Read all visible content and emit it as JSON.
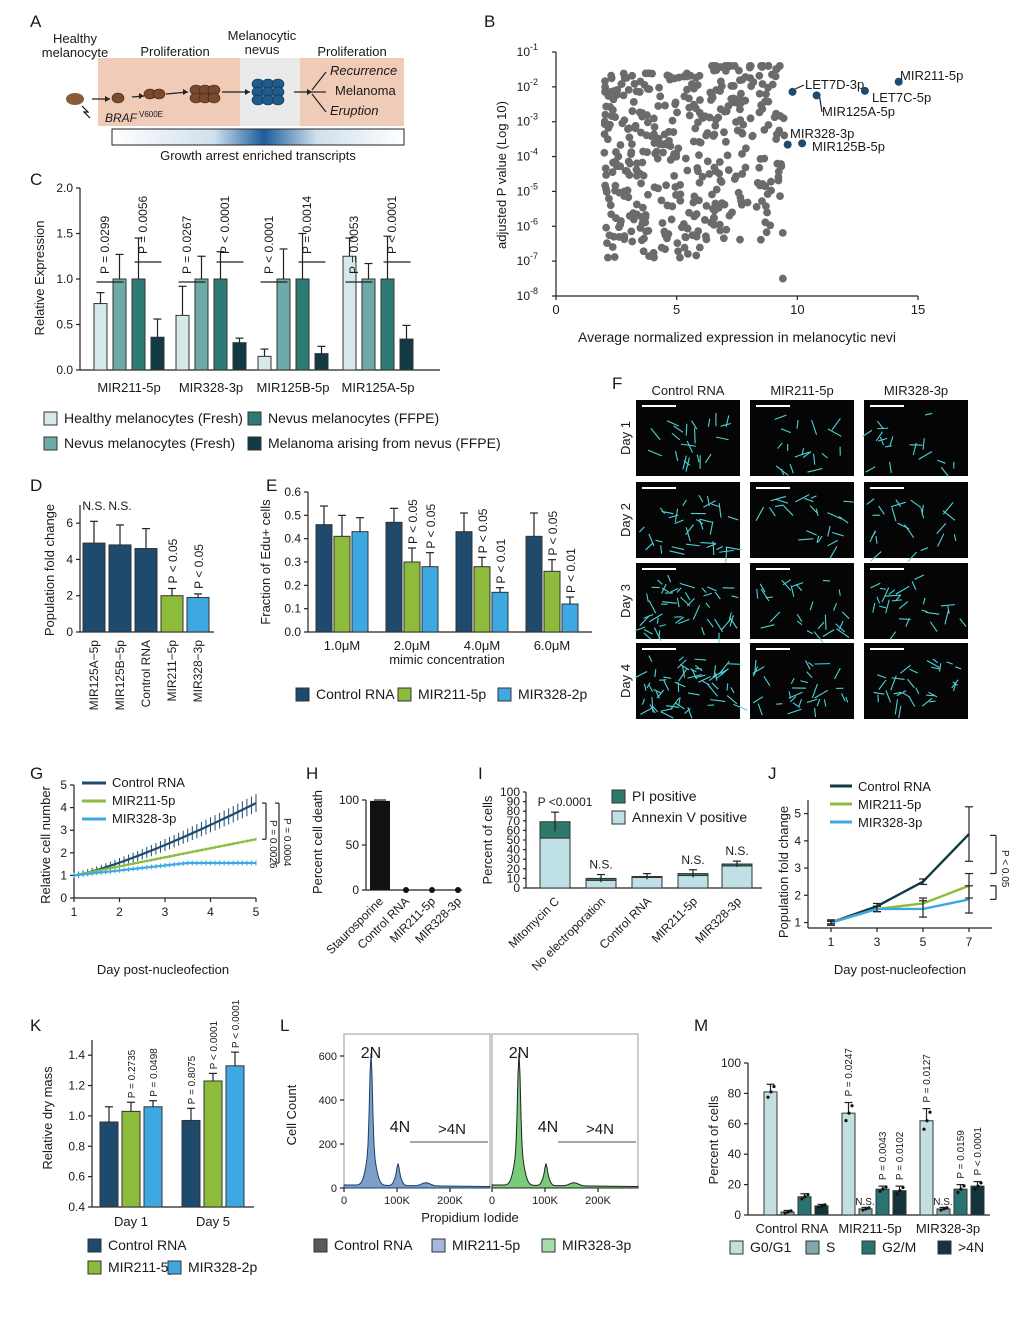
{
  "colors": {
    "navy": "#1e4a6e",
    "teal": "#2e7b76",
    "lightTeal": "#6fa9a8",
    "pale": "#d6e8ea",
    "green": "#8dbb3c",
    "sky": "#3ea8e2",
    "grey": "#666666",
    "dark": "#123a44",
    "black": "#111111",
    "blueHist": "#4f7fb5",
    "greenHist": "#3aa843"
  },
  "panel_labels": [
    "A",
    "B",
    "C",
    "D",
    "E",
    "F",
    "G",
    "H",
    "I",
    "J",
    "K",
    "L",
    "M"
  ],
  "panelA": {
    "healthy": "Healthy\nmelanocyte",
    "braf": "BRAF",
    "braf_sup": "V600E",
    "prolif1": "Proliferation",
    "nevus": "Melanocytic\nnevus",
    "prolif2": "Proliferation",
    "outcomes": [
      "Recurrence",
      "Melanoma",
      "Eruption"
    ],
    "gradient_label": "Growth arrest enriched transcripts"
  },
  "chart_data": [
    {
      "panel": "B",
      "type": "scatter",
      "xlabel": "Average normalized expression in melanocytic nevi",
      "ylabel": "adjusted P value (Log 10)",
      "xlim": [
        0,
        15
      ],
      "ylim_log10": [
        -8,
        -1
      ],
      "x_ticks": [
        "0",
        "5",
        "10",
        "15"
      ],
      "y_ticks": [
        "10^-1",
        "10^-2",
        "10^-3",
        "10^-4",
        "10^-5",
        "10^-6",
        "10^-7",
        "10^-8"
      ],
      "highlighted": [
        {
          "label": "MIR211-5p",
          "x": 14.2,
          "y": 0.014
        },
        {
          "label": "LET7D-3p",
          "x": 9.8,
          "y": 0.0072
        },
        {
          "label": "LET7C-5p",
          "x": 12.8,
          "y": 0.0077
        },
        {
          "label": "MIR125A-5p",
          "x": 10.8,
          "y": 0.0057
        },
        {
          "label": "MIR328-3p",
          "x": 9.6,
          "y": 0.00022
        },
        {
          "label": "MIR125B-5p",
          "x": 10.2,
          "y": 0.00024
        }
      ]
    },
    {
      "panel": "C",
      "type": "bar",
      "ylabel": "Relative Expression",
      "ylim": [
        0,
        2
      ],
      "y_ticks": [
        "0.0",
        "0.5",
        "1.0",
        "1.5",
        "2.0"
      ],
      "categories": [
        "MIR211-5p",
        "MIR328-3p",
        "MIR125B-5p",
        "MIR125A-5p"
      ],
      "series": [
        {
          "name": "Healthy melanocytes (Fresh)",
          "values": [
            0.73,
            0.6,
            0.15,
            1.25
          ],
          "err": [
            0.12,
            0.32,
            0.08,
            0.2
          ]
        },
        {
          "name": "Nevus melanocytes (Fresh)",
          "values": [
            1.0,
            1.0,
            1.0,
            1.0
          ],
          "err": [
            0.27,
            0.25,
            0.33,
            0.17
          ]
        },
        {
          "name": "Nevus melanocytes (FFPE)",
          "values": [
            1.0,
            1.0,
            1.0,
            1.0
          ],
          "err": [
            0.45,
            0.3,
            0.5,
            0.47
          ]
        },
        {
          "name": "Melanoma arising from nevus (FFPE)",
          "values": [
            0.36,
            0.3,
            0.18,
            0.34
          ],
          "err": [
            0.2,
            0.05,
            0.08,
            0.15
          ]
        }
      ],
      "pvalues": [
        "P = 0.0299",
        "P = 0.0056",
        "P = 0.0267",
        "P < 0.0001",
        "P < 0.0001",
        "P = 0.0014",
        "P = 0.0053",
        "P < 0.0001"
      ]
    },
    {
      "panel": "D",
      "type": "bar",
      "ylabel": "Population fold change",
      "ylim": [
        0,
        7
      ],
      "y_ticks": [
        "0",
        "2",
        "4",
        "6"
      ],
      "categories": [
        "MIR125A−5p",
        "MIR125B−5p",
        "Control RNA",
        "MIR211−5p",
        "MIR328−3p"
      ],
      "values": [
        4.9,
        4.8,
        4.6,
        2.0,
        1.9
      ],
      "err": [
        1.2,
        1.1,
        1.1,
        0.4,
        0.2
      ],
      "annotations": [
        "N.S.",
        "N.S.",
        "",
        "P < 0.05",
        "P < 0.05"
      ]
    },
    {
      "panel": "E",
      "type": "bar",
      "ylabel": "Fraction of Edu+ cells",
      "xlabel": "mimic concentration",
      "ylim": [
        0,
        0.6
      ],
      "y_ticks": [
        "0.0",
        "0.1",
        "0.2",
        "0.3",
        "0.4",
        "0.5",
        "0.6"
      ],
      "categories": [
        "1.0μM",
        "2.0μM",
        "4.0μM",
        "6.0μM"
      ],
      "series": [
        {
          "name": "Control RNA",
          "values": [
            0.46,
            0.47,
            0.43,
            0.41
          ],
          "err": [
            0.08,
            0.06,
            0.08,
            0.1
          ]
        },
        {
          "name": "MIR211-5p",
          "values": [
            0.41,
            0.3,
            0.28,
            0.26
          ],
          "err": [
            0.09,
            0.06,
            0.04,
            0.05
          ]
        },
        {
          "name": "MIR328-2p",
          "values": [
            0.43,
            0.28,
            0.17,
            0.12
          ],
          "err": [
            0.06,
            0.06,
            0.02,
            0.03
          ]
        }
      ],
      "annotations": [
        "P < 0.05",
        "P < 0.05",
        "P < 0.05",
        "P < 0.01",
        "P < 0.05",
        "P < 0.01"
      ]
    },
    {
      "panel": "G",
      "type": "line",
      "xlabel": "Day post-nucleofection",
      "ylabel": "Relative cell number",
      "xlim": [
        1,
        5
      ],
      "ylim": [
        0,
        5
      ],
      "x_ticks": [
        "1",
        "2",
        "3",
        "4",
        "5"
      ],
      "y_ticks": [
        "0",
        "1",
        "2",
        "3",
        "4",
        "5"
      ],
      "series": [
        {
          "name": "Control RNA",
          "x": [
            1,
            2,
            3,
            4,
            5
          ],
          "y": [
            1.0,
            1.5,
            2.3,
            3.2,
            4.2
          ]
        },
        {
          "name": "MIR211-5p",
          "x": [
            1,
            2,
            3,
            4,
            5
          ],
          "y": [
            1.0,
            1.35,
            1.85,
            2.25,
            2.6
          ]
        },
        {
          "name": "MIR328-3p",
          "x": [
            1,
            2,
            3,
            4,
            5
          ],
          "y": [
            1.0,
            1.35,
            1.5,
            1.55,
            1.55
          ]
        }
      ],
      "annotations": [
        "P = 0.0026",
        "P = 0.0004"
      ]
    },
    {
      "panel": "H",
      "type": "bar",
      "ylabel": "Percent cell death",
      "ylim": [
        0,
        100
      ],
      "y_ticks": [
        "0",
        "50",
        "100"
      ],
      "categories": [
        "Staurosporine",
        "Control RNA",
        "MIR211-5p",
        "MIR328-3p"
      ],
      "values": [
        99,
        0,
        0,
        0
      ]
    },
    {
      "panel": "I",
      "type": "bar",
      "ylabel": "Percent of cells",
      "ylim": [
        0,
        100
      ],
      "y_ticks": [
        "0",
        "10",
        "20",
        "30",
        "40",
        "50",
        "60",
        "70",
        "80",
        "90",
        "100"
      ],
      "categories": [
        "Mitomycin C",
        "No electroporation",
        "Control RNA",
        "MIR211-5p",
        "MIR328-3p"
      ],
      "series": [
        {
          "name": "PI positive",
          "values": [
            17,
            2,
            1,
            2,
            2
          ]
        },
        {
          "name": "Annexin V positive",
          "values": [
            52,
            8,
            11,
            13,
            23
          ]
        }
      ],
      "err": [
        10,
        4,
        3,
        4,
        3
      ],
      "annotations": [
        "P <0.0001",
        "N.S.",
        "",
        "N.S.",
        "N.S."
      ]
    },
    {
      "panel": "J",
      "type": "line",
      "xlabel": "Day post-nucleofection",
      "ylabel": "Population fold change",
      "xlim": [
        0,
        8
      ],
      "ylim": [
        0.8,
        5.5
      ],
      "x_ticks": [
        "1",
        "3",
        "5",
        "7"
      ],
      "y_ticks": [
        "1",
        "2",
        "3",
        "4",
        "5"
      ],
      "series": [
        {
          "name": "Control RNA",
          "x": [
            1,
            3,
            5,
            7
          ],
          "y": [
            1.0,
            1.6,
            2.5,
            4.25
          ]
        },
        {
          "name": "MIR211-5p",
          "x": [
            1,
            3,
            5,
            7
          ],
          "y": [
            1.0,
            1.5,
            1.7,
            2.35
          ]
        },
        {
          "name": "MIR328-3p",
          "x": [
            1,
            3,
            5,
            7
          ],
          "y": [
            1.0,
            1.5,
            1.5,
            1.85
          ]
        }
      ],
      "annotations": [
        "P < 0.05"
      ]
    },
    {
      "panel": "K",
      "type": "bar",
      "ylabel": "Relative dry mass",
      "ylim": [
        0.4,
        1.5
      ],
      "y_ticks": [
        "0.4",
        "0.6",
        "0.8",
        "1.0",
        "1.2",
        "1.4"
      ],
      "categories": [
        "Day 1",
        "Day 5"
      ],
      "series": [
        {
          "name": "Control RNA",
          "values": [
            0.96,
            0.97
          ]
        },
        {
          "name": "MIR211-5p",
          "values": [
            1.03,
            1.23
          ]
        },
        {
          "name": "MIR328-2p",
          "values": [
            1.06,
            1.33
          ]
        }
      ],
      "annotations": [
        "P = 0.2735",
        "P = 0.0498",
        "P = 0.8075",
        "P < 0.0001",
        "P < 0.0001"
      ]
    },
    {
      "panel": "L",
      "type": "area",
      "xlabel": "Propidium Iodide",
      "ylabel": "Cell Count",
      "ylim": [
        0,
        700
      ],
      "y_ticks": [
        "0",
        "200",
        "400",
        "600"
      ],
      "x_ticks": [
        "0",
        "100K",
        "200K"
      ],
      "peak_labels": [
        "2N",
        "4N",
        ">4N"
      ],
      "series": [
        {
          "name": "Control RNA"
        },
        {
          "name": "MIR211-5p"
        },
        {
          "name": "MIR328-3p"
        }
      ]
    },
    {
      "panel": "M",
      "type": "bar",
      "ylabel": "Percent of cells",
      "ylim": [
        0,
        100
      ],
      "y_ticks": [
        "0",
        "20",
        "40",
        "60",
        "80",
        "100"
      ],
      "categories": [
        "Control RNA",
        "MIR211-5p",
        "MIR328-3p"
      ],
      "series": [
        {
          "name": "G0/G1",
          "values": [
            81,
            67,
            62
          ]
        },
        {
          "name": "S",
          "values": [
            2,
            4,
            4
          ]
        },
        {
          "name": "G2/M",
          "values": [
            12,
            17,
            17
          ]
        },
        {
          "name": ">4N",
          "values": [
            6,
            16,
            19
          ]
        }
      ],
      "annotations": [
        "P = 0.0247",
        "N.S.",
        "P = 0.0043",
        "P = 0.0102",
        "P = 0.0127",
        "N.S.",
        "P = 0.0159",
        "P < 0.0001"
      ]
    }
  ],
  "panelF": {
    "columns": [
      "Control RNA",
      "MIR211-5p",
      "MIR328-3p"
    ],
    "rows": [
      "Day 1",
      "Day 2",
      "Day 3",
      "Day 4"
    ]
  }
}
